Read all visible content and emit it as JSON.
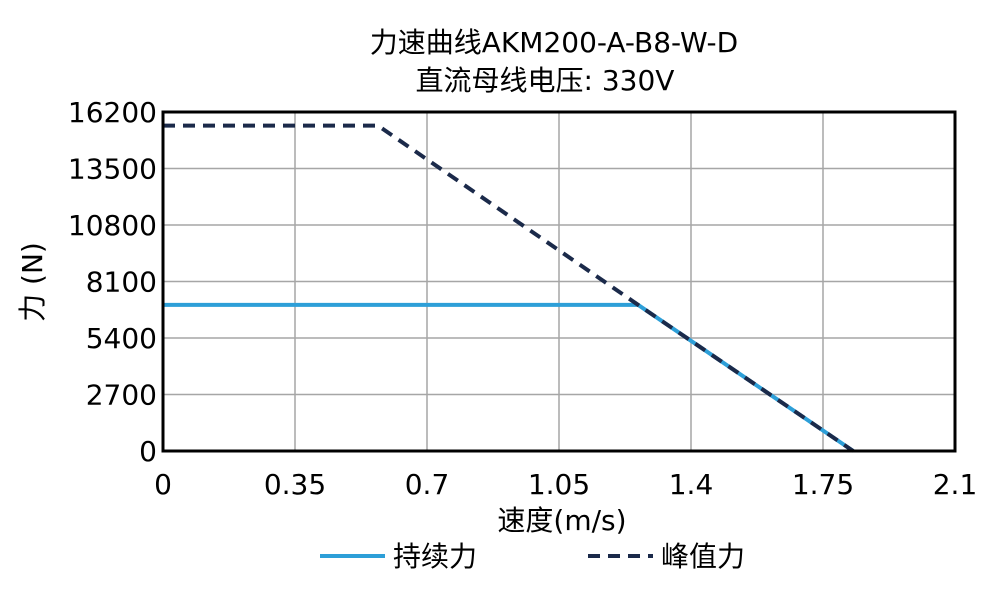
{
  "chart_data": {
    "type": "line",
    "title": "力速曲线AKM200-A-B8-W-D",
    "subtitle": "直流母线电压: 330V",
    "xlabel": "速度(m/s)",
    "ylabel": "力 (N)",
    "xlim": [
      0,
      2.1
    ],
    "ylim": [
      0,
      16200
    ],
    "xticks": [
      0,
      0.35,
      0.7,
      1.05,
      1.4,
      1.75,
      2.1
    ],
    "xtick_labels": [
      "0",
      "0.35",
      "0.7",
      "1.05",
      "1.4",
      "1.75",
      "2.1"
    ],
    "yticks": [
      0,
      2700,
      5400,
      8100,
      10800,
      13500,
      16200
    ],
    "ytick_labels": [
      "0",
      "2700",
      "5400",
      "8100",
      "10800",
      "13500",
      "16200"
    ],
    "grid": true,
    "legend_position": "bottom",
    "series": [
      {
        "name": "持续力",
        "color": "#2d9fd8",
        "dash": "solid",
        "x": [
          0,
          1.26,
          1.83
        ],
        "y": [
          6980,
          6980,
          0
        ]
      },
      {
        "name": "峰值力",
        "color": "#1b2a4a",
        "dash": "dashed",
        "x": [
          0,
          0.57,
          1.26,
          1.83
        ],
        "y": [
          15550,
          15550,
          6980,
          0
        ]
      }
    ]
  }
}
